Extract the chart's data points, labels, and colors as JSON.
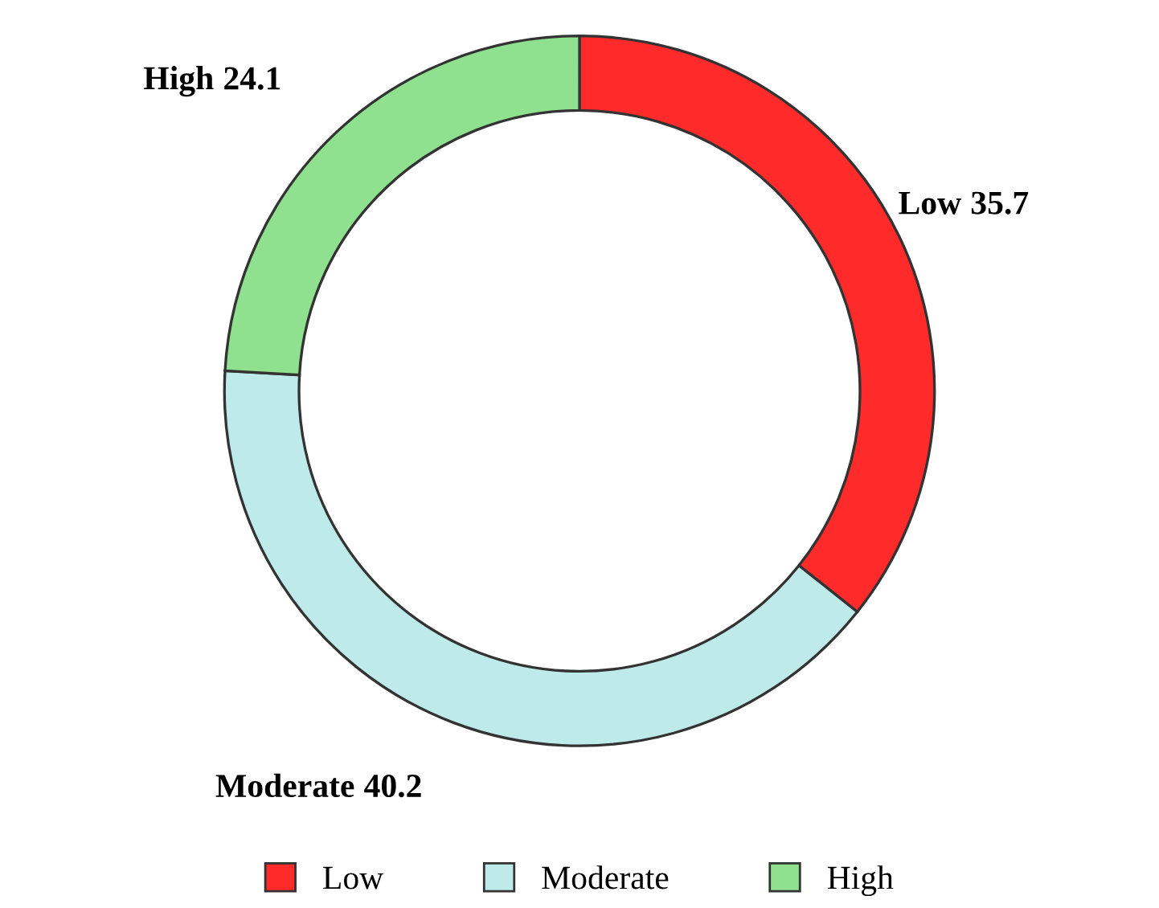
{
  "chart_data": {
    "type": "donut",
    "categories": [
      "Low",
      "Moderate",
      "High"
    ],
    "values": [
      35.7,
      40.2,
      24.1
    ],
    "colors": [
      "#ff2a2a",
      "#bfeaea",
      "#8fe08f"
    ],
    "data_labels": true,
    "legend": "bottom"
  }
}
